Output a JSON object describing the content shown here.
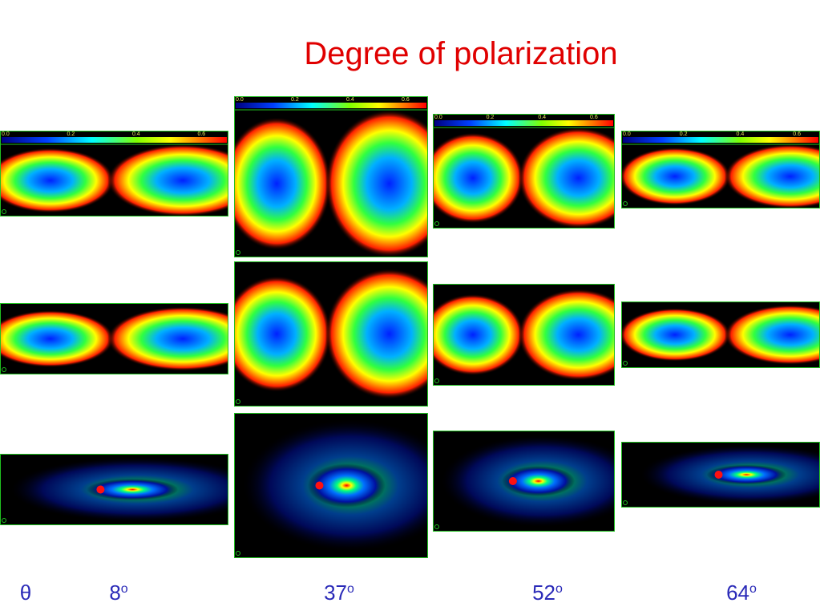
{
  "title": "Degree of polarization",
  "colorbar": {
    "ticks": [
      "0.0",
      "0.2",
      "0.4",
      "0.6"
    ]
  },
  "axis_label": "θ",
  "columns": [
    {
      "label": "8",
      "sup": "o"
    },
    {
      "label": "37",
      "sup": "o"
    },
    {
      "label": "52",
      "sup": "o"
    },
    {
      "label": "64",
      "sup": "o"
    }
  ]
}
